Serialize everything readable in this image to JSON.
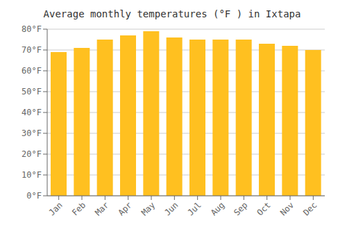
{
  "chart_data": {
    "type": "bar",
    "title": "Average monthly temperatures (°F ) in Ixtapa",
    "categories": [
      "Jan",
      "Feb",
      "Mar",
      "Apr",
      "May",
      "Jun",
      "Jul",
      "Aug",
      "Sep",
      "Oct",
      "Nov",
      "Dec"
    ],
    "values": [
      69,
      71,
      75,
      77,
      79,
      76,
      75,
      75,
      75,
      73,
      72,
      70
    ],
    "color": "#FFC020",
    "ylim": [
      0,
      80
    ],
    "yticks": [
      {
        "value": 0,
        "label": "0°F"
      },
      {
        "value": 10,
        "label": "10°F"
      },
      {
        "value": 20,
        "label": "20°F"
      },
      {
        "value": 30,
        "label": "30°F"
      },
      {
        "value": 40,
        "label": "40°F"
      },
      {
        "value": 50,
        "label": "50°F"
      },
      {
        "value": 60,
        "label": "60°F"
      },
      {
        "value": 70,
        "label": "70°F"
      },
      {
        "value": 80,
        "label": "80°F"
      }
    ],
    "grid": true
  }
}
